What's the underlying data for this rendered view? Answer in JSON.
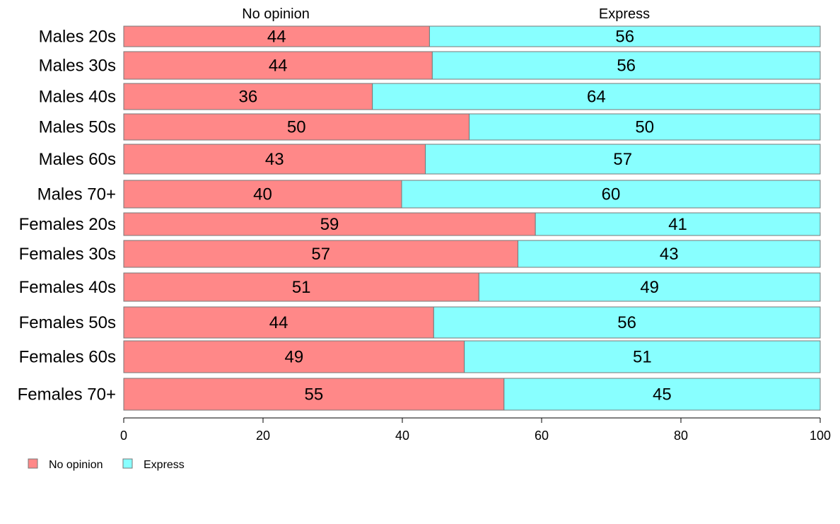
{
  "chart_data": {
    "type": "bar",
    "orientation": "horizontal",
    "stacked": true,
    "categories": [
      "Males 20s",
      "Males 30s",
      "Males 40s",
      "Males 50s",
      "Males 60s",
      "Males 70+",
      "Females 20s",
      "Females 30s",
      "Females 40s",
      "Females 50s",
      "Females 60s",
      "Females 70+"
    ],
    "series": [
      {
        "name": "No opinion",
        "color": "#ff8888",
        "values": [
          44,
          44,
          36,
          50,
          43,
          40,
          59,
          57,
          51,
          44,
          49,
          55
        ],
        "exact": [
          43.9,
          44.3,
          35.7,
          49.6,
          43.3,
          39.9,
          59.1,
          56.6,
          51.0,
          44.5,
          48.9,
          54.6
        ]
      },
      {
        "name": "Express",
        "color": "#88ffff",
        "values": [
          56,
          56,
          64,
          50,
          57,
          60,
          41,
          43,
          49,
          56,
          51,
          45
        ]
      }
    ],
    "column_headers": [
      "No opinion",
      "Express"
    ],
    "xlim": [
      0,
      100
    ],
    "xticks": [
      "0",
      "20",
      "40",
      "60",
      "80",
      "100"
    ],
    "legend_position": "bottom-left",
    "grid": false
  }
}
